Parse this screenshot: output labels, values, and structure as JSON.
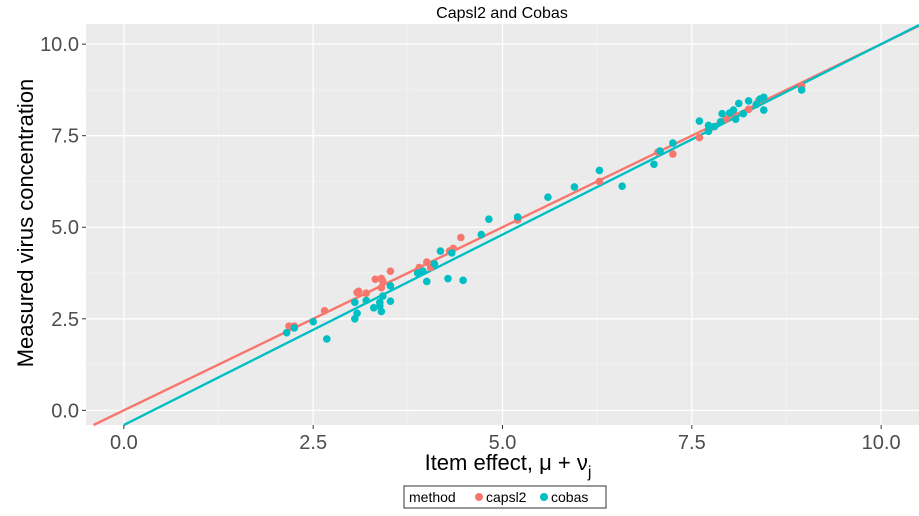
{
  "chart_data": {
    "type": "scatter",
    "title": "Capsl2 and Cobas",
    "xlabel": "Item effect, μ + ν",
    "xlabel_subscript": "j",
    "ylabel": "Measured virus concentration",
    "xlim": [
      -0.5,
      10.5
    ],
    "ylim": [
      -0.4,
      10.55
    ],
    "x_ticks": [
      0.0,
      2.5,
      5.0,
      7.5,
      10.0
    ],
    "x_tick_labels": [
      "0.0",
      "2.5",
      "5.0",
      "7.5",
      "10.0"
    ],
    "y_ticks": [
      0.0,
      2.5,
      5.0,
      7.5,
      10.0
    ],
    "y_tick_labels": [
      "0.0",
      "2.5",
      "5.0",
      "7.5",
      "10.0"
    ],
    "grid": true,
    "legend": {
      "title": "method",
      "placement": "bottom",
      "entries": [
        "capsl2",
        "cobas"
      ]
    },
    "colors": {
      "capsl2": "#F8766D",
      "cobas": "#00BFC4",
      "panel_background": "#EBEBEB"
    },
    "series": [
      {
        "name": "capsl2",
        "color": "#F8766D",
        "fit_line": {
          "intercept": 0.0,
          "slope": 1.0
        },
        "points": [
          [
            2.18,
            2.3
          ],
          [
            2.25,
            2.3
          ],
          [
            2.65,
            2.72
          ],
          [
            3.08,
            3.22
          ],
          [
            3.1,
            3.25
          ],
          [
            3.2,
            3.2
          ],
          [
            3.32,
            3.58
          ],
          [
            3.4,
            3.6
          ],
          [
            3.42,
            3.52
          ],
          [
            3.4,
            3.35
          ],
          [
            3.52,
            3.8
          ],
          [
            3.9,
            3.9
          ],
          [
            4.0,
            4.05
          ],
          [
            4.05,
            3.9
          ],
          [
            4.3,
            4.35
          ],
          [
            4.35,
            4.42
          ],
          [
            4.45,
            4.72
          ],
          [
            5.2,
            5.2
          ],
          [
            6.28,
            6.25
          ],
          [
            7.05,
            7.05
          ],
          [
            7.25,
            7.0
          ],
          [
            7.6,
            7.45
          ],
          [
            7.75,
            7.72
          ],
          [
            7.95,
            7.95
          ],
          [
            8.05,
            8.1
          ],
          [
            8.25,
            8.22
          ],
          [
            8.38,
            8.45
          ],
          [
            8.95,
            8.85
          ]
        ]
      },
      {
        "name": "cobas",
        "color": "#00BFC4",
        "fit_line": {
          "intercept": -0.4,
          "slope": 1.04
        },
        "points": [
          [
            2.15,
            2.12
          ],
          [
            2.25,
            2.25
          ],
          [
            2.5,
            2.42
          ],
          [
            2.68,
            1.95
          ],
          [
            3.05,
            2.5
          ],
          [
            3.08,
            2.65
          ],
          [
            3.05,
            2.95
          ],
          [
            3.2,
            3.0
          ],
          [
            3.3,
            2.8
          ],
          [
            3.38,
            2.95
          ],
          [
            3.38,
            2.85
          ],
          [
            3.4,
            2.7
          ],
          [
            3.42,
            3.12
          ],
          [
            3.52,
            2.98
          ],
          [
            3.52,
            3.4
          ],
          [
            3.88,
            3.75
          ],
          [
            3.95,
            3.8
          ],
          [
            4.0,
            3.52
          ],
          [
            4.1,
            4.0
          ],
          [
            4.18,
            4.35
          ],
          [
            4.28,
            3.6
          ],
          [
            4.33,
            4.3
          ],
          [
            4.48,
            3.55
          ],
          [
            4.72,
            4.8
          ],
          [
            4.82,
            5.22
          ],
          [
            5.2,
            5.28
          ],
          [
            5.6,
            5.82
          ],
          [
            5.95,
            6.1
          ],
          [
            6.28,
            6.55
          ],
          [
            6.58,
            6.12
          ],
          [
            7.0,
            6.72
          ],
          [
            7.08,
            7.08
          ],
          [
            7.25,
            7.3
          ],
          [
            7.6,
            7.9
          ],
          [
            7.72,
            7.62
          ],
          [
            7.72,
            7.78
          ],
          [
            7.8,
            7.75
          ],
          [
            7.88,
            7.88
          ],
          [
            7.9,
            8.1
          ],
          [
            8.0,
            8.12
          ],
          [
            8.05,
            8.2
          ],
          [
            8.08,
            7.95
          ],
          [
            8.12,
            8.38
          ],
          [
            8.18,
            8.1
          ],
          [
            8.25,
            8.45
          ],
          [
            8.35,
            8.35
          ],
          [
            8.4,
            8.5
          ],
          [
            8.45,
            8.2
          ],
          [
            8.45,
            8.55
          ],
          [
            8.95,
            8.75
          ]
        ]
      }
    ]
  }
}
